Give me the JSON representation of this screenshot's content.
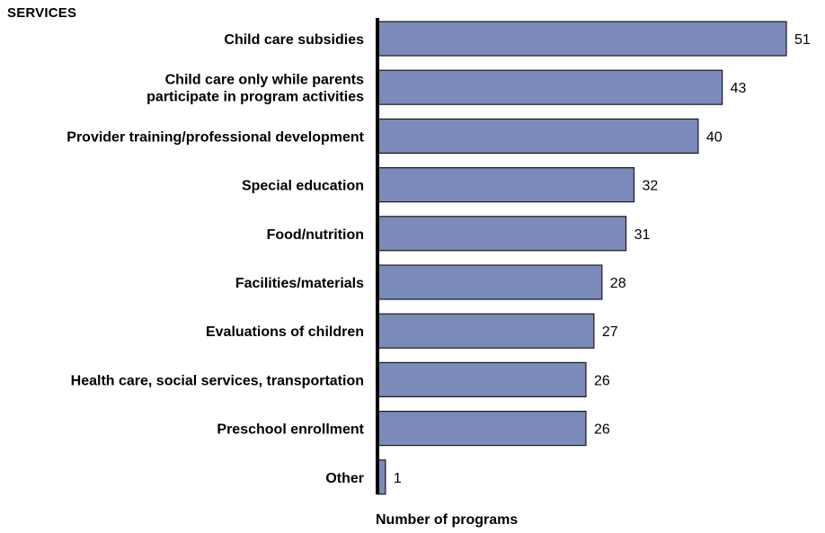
{
  "header": {
    "services_label": "SERVICES"
  },
  "colors": {
    "bar_fill": "#7a8bba",
    "bar_stroke": "#1a1a1a",
    "axis": "#000000"
  },
  "chart_data": {
    "type": "bar",
    "orientation": "horizontal",
    "title": "",
    "xlabel": "Number of programs",
    "ylabel": "SERVICES",
    "xlim": [
      0,
      51
    ],
    "grid": false,
    "categories": [
      [
        "Child care subsidies"
      ],
      [
        "Child care only while parents",
        "participate in program activities"
      ],
      [
        "Provider training/professional development"
      ],
      [
        "Special education"
      ],
      [
        "Food/nutrition"
      ],
      [
        "Facilities/materials"
      ],
      [
        "Evaluations of children"
      ],
      [
        "Health care, social services, transportation"
      ],
      [
        "Preschool enrollment"
      ],
      [
        "Other"
      ]
    ],
    "values": [
      51,
      43,
      40,
      32,
      31,
      28,
      27,
      26,
      26,
      1
    ]
  }
}
